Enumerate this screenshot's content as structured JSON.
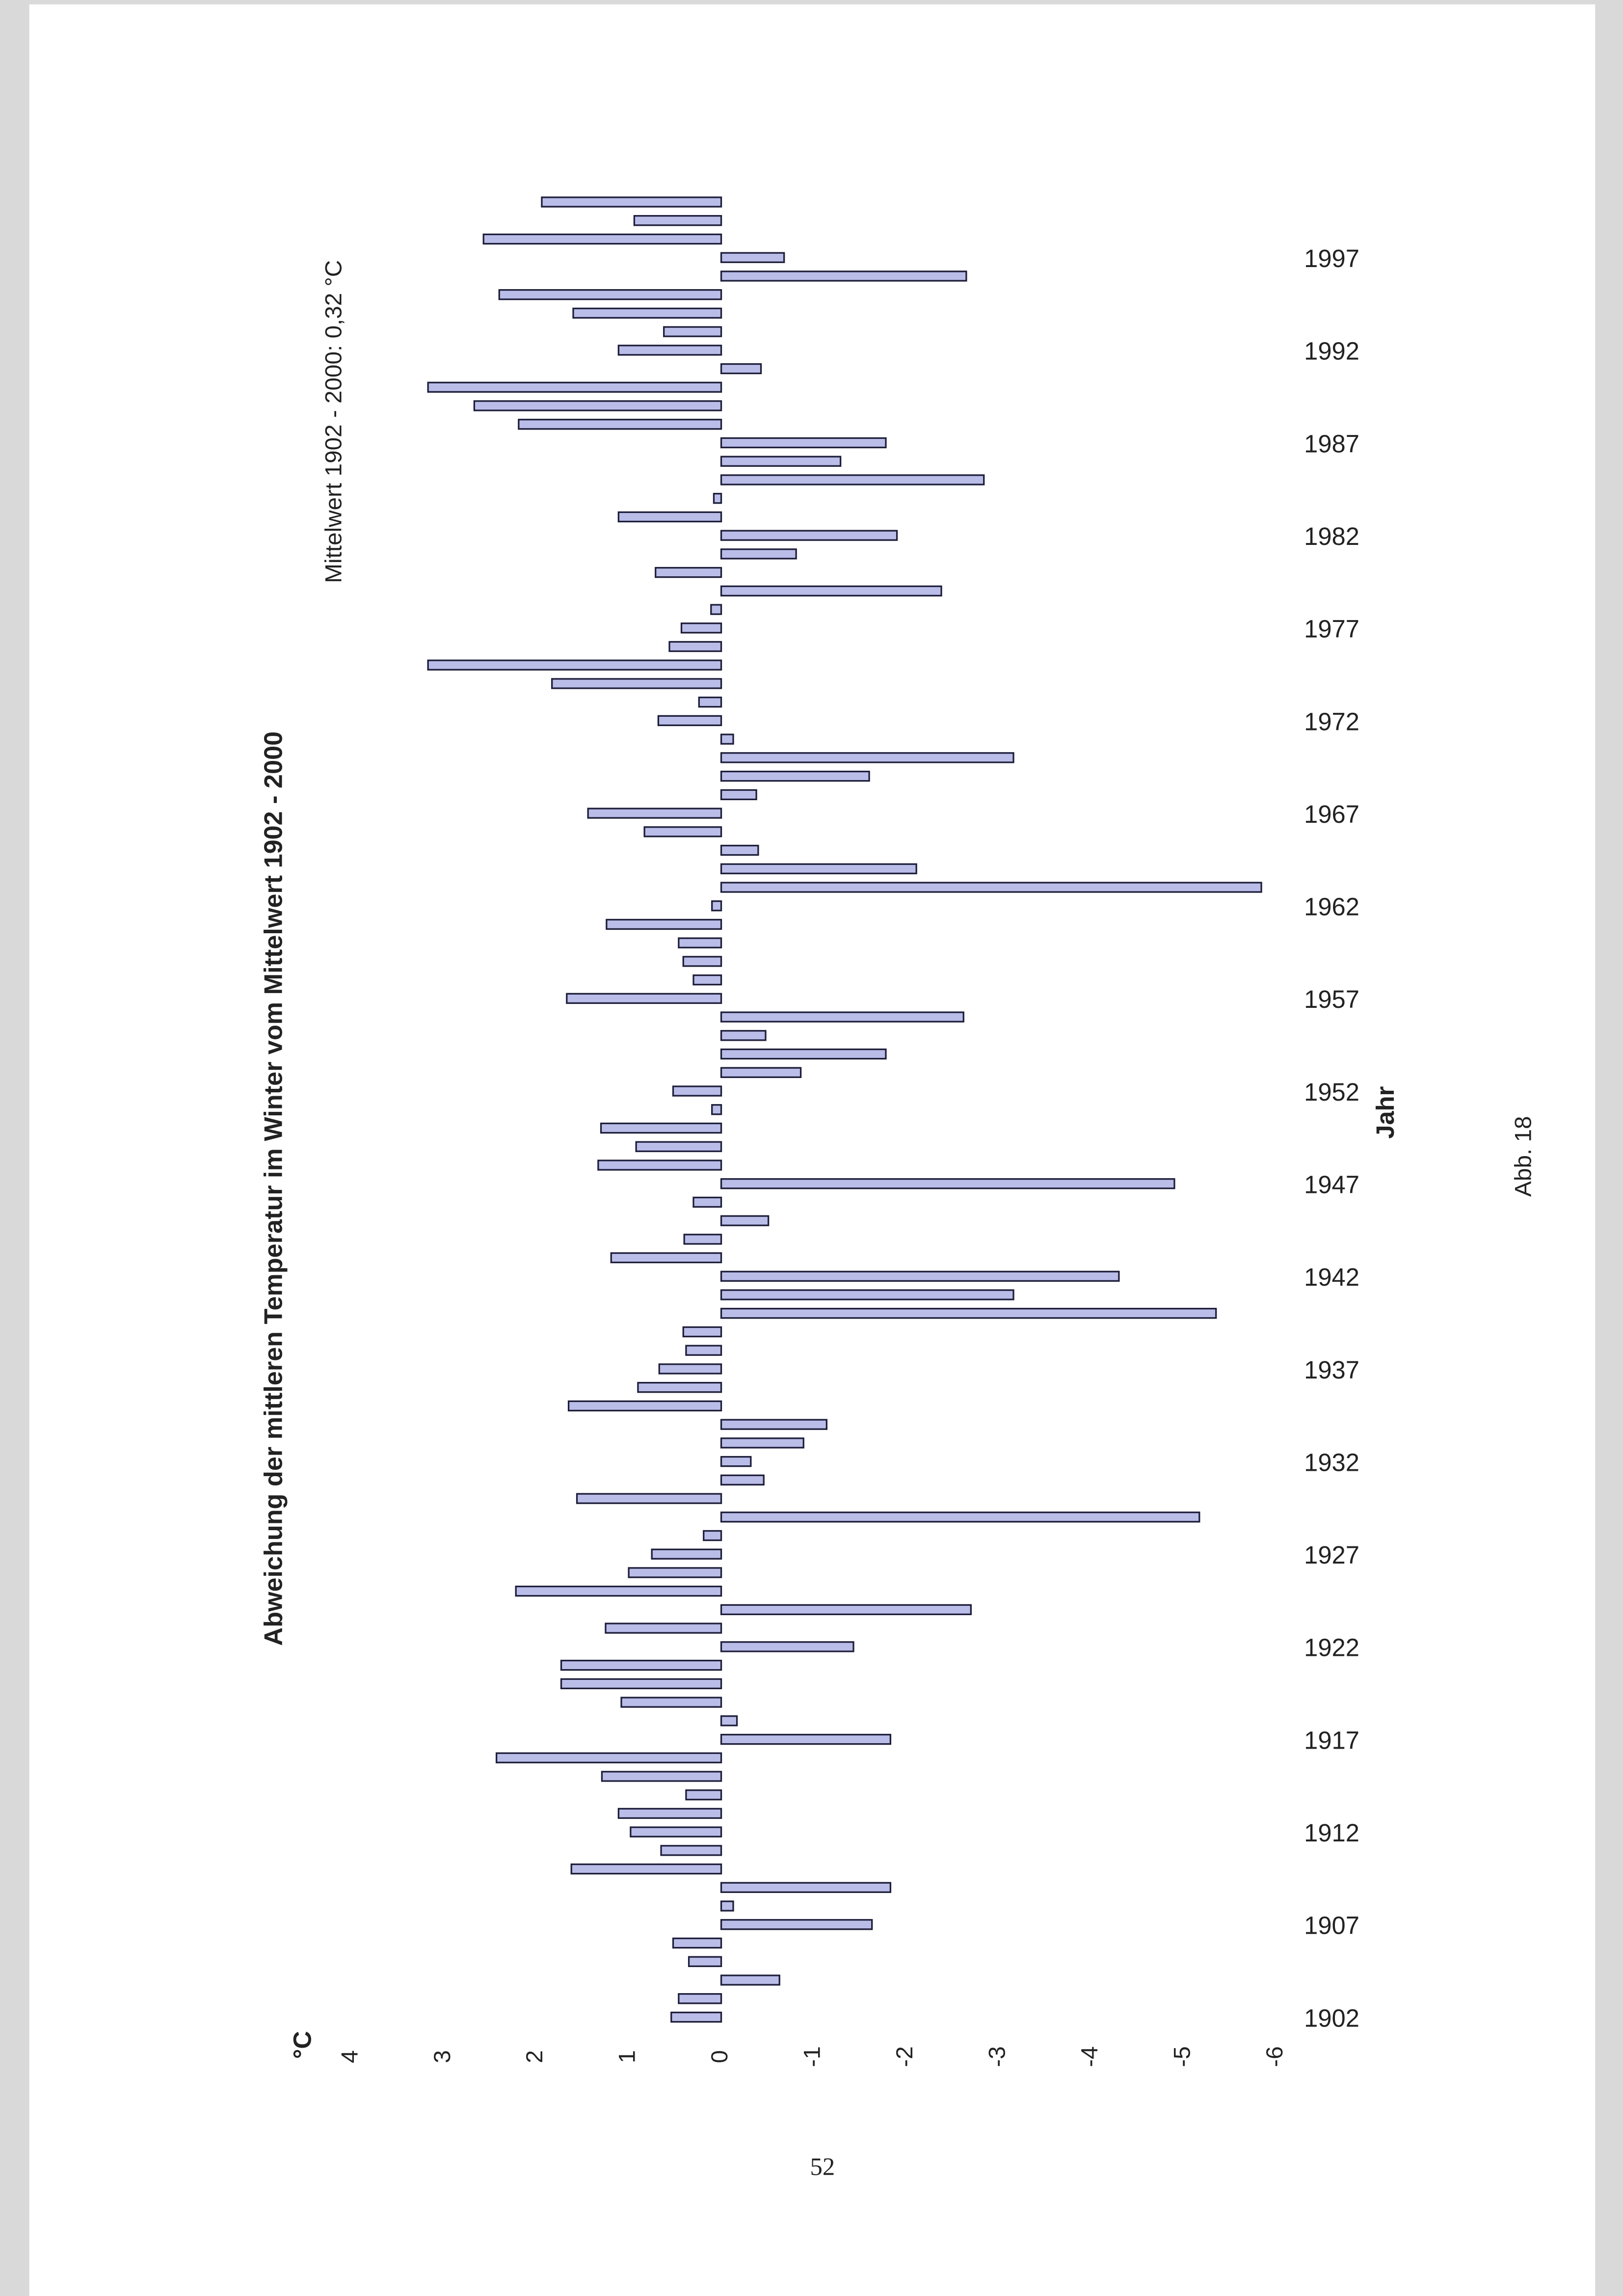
{
  "chart_data": {
    "type": "bar",
    "orientation": "horizontal",
    "title": "Abweichung der mittleren Temperatur im Winter vom Mittelwert 1902 - 2000",
    "subtitle": "Mittelwert 1902 - 2000: 0,32 °C",
    "ylabel": "°C",
    "xlabel": "Jahr",
    "annotation": "Abb. 18",
    "page_number": "52",
    "color": "#b9bde8",
    "ylim": [
      4,
      -6
    ],
    "yticks": [
      4,
      3,
      2,
      1,
      0,
      -1,
      -2,
      -3,
      -4,
      -5,
      -6
    ],
    "categories": [
      "1902",
      null,
      null,
      null,
      null,
      "1907",
      null,
      null,
      null,
      null,
      "1912",
      null,
      null,
      null,
      null,
      "1917",
      null,
      null,
      null,
      null,
      "1922",
      null,
      null,
      null,
      null,
      "1927",
      null,
      null,
      null,
      null,
      "1932",
      null,
      null,
      null,
      null,
      "1937",
      null,
      null,
      null,
      null,
      "1942",
      null,
      null,
      null,
      null,
      "1947",
      null,
      null,
      null,
      null,
      "1952",
      null,
      null,
      null,
      null,
      "1957",
      null,
      null,
      null,
      null,
      "1962",
      null,
      null,
      null,
      null,
      "1967",
      null,
      null,
      null,
      null,
      "1972",
      null,
      null,
      null,
      null,
      "1977",
      null,
      null,
      null,
      null,
      "1982",
      null,
      null,
      null,
      null,
      "1987",
      null,
      null,
      null,
      null,
      "1992",
      null,
      null,
      null,
      null,
      "1997",
      null,
      null,
      null
    ],
    "values": [
      0.54,
      0.46,
      -0.63,
      0.35,
      0.52,
      -1.63,
      -0.13,
      -1.83,
      1.62,
      0.65,
      0.98,
      1.11,
      0.38,
      1.29,
      2.43,
      -1.83,
      -0.17,
      1.08,
      1.73,
      1.73,
      -1.43,
      1.25,
      -2.7,
      2.22,
      1.0,
      0.75,
      0.19,
      -5.17,
      1.56,
      -0.46,
      -0.32,
      -0.89,
      -1.14,
      1.65,
      0.9,
      0.67,
      0.38,
      0.41,
      -5.35,
      -3.16,
      -4.3,
      1.19,
      0.4,
      -0.51,
      0.3,
      -4.9,
      1.33,
      0.92,
      1.3,
      0.1,
      0.52,
      -0.86,
      -1.78,
      -0.48,
      -2.62,
      1.67,
      0.3,
      0.41,
      0.46,
      1.24,
      0.1,
      -5.84,
      -2.11,
      -0.4,
      0.83,
      1.44,
      -0.38,
      -1.6,
      -3.16,
      -0.13,
      0.68,
      0.24,
      1.83,
      3.17,
      0.56,
      0.43,
      0.11,
      -2.38,
      0.71,
      -0.81,
      -1.9,
      1.11,
      0.08,
      -2.84,
      -1.29,
      -1.78,
      2.19,
      2.67,
      3.17,
      -0.43,
      1.11,
      0.62,
      1.6,
      2.4,
      -2.65,
      -0.68,
      2.57,
      0.94,
      1.94
    ]
  }
}
